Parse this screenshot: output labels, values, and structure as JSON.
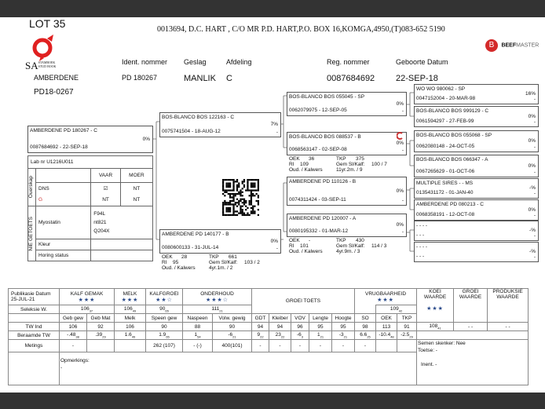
{
  "lot": "LOT 35",
  "address": "0013694, D.C. HART , C/O MR P.D. HART,P.O. BOX 16,KOMGA,4950,(T)083-652 5190",
  "logo_sa": {
    "big": "SA",
    "line1": "STAMBOEK",
    "line2": "STUD BOOK",
    "color": "#e02020"
  },
  "logo_beefmaster": {
    "text1": "BEEF",
    "text2": "MASTER",
    "color": "#d42a2a"
  },
  "header": {
    "labels": {
      "ident": "Ident. nommer",
      "geslag": "Geslag",
      "afdeling": "Afdeling",
      "reg": "Reg. nommer",
      "geboorte": "Geboorte Datum"
    },
    "values": {
      "name": "AMBERDENE",
      "ident": "PD  180267",
      "geslag": "MANLIK",
      "afdeling": "C",
      "reg": "0087684692",
      "geboorte": "22-SEP-18",
      "code": "PD18-0267"
    }
  },
  "pedigree": {
    "subject": {
      "name": "AMBERDENE PD  180267 - C",
      "reg": "0087684692 -  22-SEP-18",
      "pct": "0%",
      "dash": ""
    },
    "sire": {
      "name": "BOS-BLANCO BOS 122163 - C",
      "reg": "0075741504 - 18-AUG-12",
      "pct": "7%",
      "dash": "-"
    },
    "dam": {
      "name": "AMBERDENE PD  140177 - B",
      "reg": "0080600133 - 31-JUL-14",
      "pct": "0%",
      "dash": "-"
    },
    "ss": {
      "name": "BOS-BLANCO BOS 055045 - SP",
      "reg": "0062079975 - 12-SEP-05",
      "pct": "0%",
      "dash": "-"
    },
    "sd": {
      "name": "BOS-BLANCO BOS 088537 - B",
      "reg": "0068563147 - 02-SEP-08",
      "pct": "0%",
      "dash": "-"
    },
    "ds": {
      "name": "AMBERDENE PD  110126 - B",
      "reg": "0074311424 - 03-SEP-11",
      "pct": "0%",
      "dash": "-"
    },
    "dd": {
      "name": "AMBERDENE PD  120007 - A",
      "reg": "0080195332 - 01-MAR-12",
      "pct": "0%",
      "dash": "-"
    },
    "sss": {
      "name": "WO WO  980062 - SP",
      "reg": "0047152004 - 20-MAR-98",
      "pct": "16%",
      "dash": "-"
    },
    "ssd": {
      "name": "BOS-BLANCO BOS 999129 - C",
      "reg": "0061594297 - 27-FEB-99",
      "pct": "0%",
      "dash": "-"
    },
    "sds": {
      "name": "BOS-BLANCO BOS 055068 - SP",
      "reg": "0062080148 - 24-OCT-05",
      "pct": "0%",
      "dash": "-"
    },
    "sdd": {
      "name": "BOS-BLANCO BOS 066347 - A",
      "reg": "0067265629 - 01-OCT-06",
      "pct": "0%",
      "dash": "-"
    },
    "dss": {
      "name": "MULTIPLE SIRES - - MS",
      "reg": "0135431172 - 01-JAN-40",
      "pct": "-%",
      "dash": "-"
    },
    "dsd": {
      "name": "AMBERDENE PD  080213 - C",
      "reg": "0068358191 - 12-OCT-08",
      "pct": "0%",
      "dash": "-"
    },
    "dds": {
      "name": "- - - -",
      "reg": "- - -",
      "pct": "-%",
      "dash": "-"
    },
    "ddd": {
      "name": "- - - -",
      "reg": "- - -",
      "pct": "-%",
      "dash": "-"
    }
  },
  "dam_stats": {
    "oek_l": "OEK",
    "oek": "28",
    "tkp_l": "TKP",
    "tkp": "661",
    "ri_l": "RI",
    "ri": "95",
    "gem_l": "Gem Sl/Kalf:",
    "gem": "103 / 2",
    "oud_l": "Oud. / Kalwers",
    "oud": "4yr.1m. / 2"
  },
  "sd_stats": {
    "oek_l": "OEK",
    "oek": "36",
    "tkp_l": "TKP",
    "tkp": "375",
    "ri_l": "RI",
    "ri": "109",
    "gem_l": "Gem Sl/Kalf:",
    "gem": "100 / 7",
    "oud_l": "Oud. / Kalwers",
    "oud": "11yr.2m. / 9"
  },
  "dd_stats": {
    "oek_l": "OEK",
    "oek": "-",
    "tkp_l": "TKP",
    "tkp": "430",
    "ri_l": "RI",
    "ri": "101",
    "gem_l": "Gem Sl/Kalf:",
    "gem": "114 / 3",
    "oud_l": "Oud. / Kalwers",
    "oud": "4yr.9m. / 3"
  },
  "lab": {
    "labnr": "Lab nr  U1216U011",
    "vaar": "VAAR",
    "moer": "MOER",
    "ouerskap": "Ouerskap",
    "dns": "DNS",
    "dns_moer": "NT",
    "gr_vaar": "NT",
    "gr_moer": "NT",
    "nie_getoets": "NIE GETOETS",
    "myostatin": "Myostatin",
    "myo_vals": [
      "F94L",
      "nt821",
      "Q204X"
    ],
    "kleur": "Kleur",
    "horing": "Horing status"
  },
  "table": {
    "pub_label": "Publikasie Datum",
    "pub_date": "25-JUL-21",
    "groups": {
      "kalfgemak": "KALF GEMAK",
      "melk": "MELK",
      "kalfgroei": "KALFGROEI",
      "onderhoud": "ONDERHOUD",
      "groeitoets": "GROEI TOETS",
      "vrug": "VRUGBAARHEID",
      "koei": "KOEI WAARDE",
      "groei": "GROEI WAARDE",
      "produksie": "PRODUKSIE WAARDE"
    },
    "stars": {
      "kalfgemak": "★★★",
      "melk": "★★★",
      "kalfgroei": "★★☆",
      "onderhoud": "★★★☆",
      "vrug": "★★★",
      "koei": "★★★"
    },
    "seleksie_label": "Seleksie W.",
    "seleksie": [
      {
        "v": "106",
        "a": "37"
      },
      {
        "v": "106",
        "a": "49"
      },
      {
        "v": "90",
        "a": "65"
      },
      {
        "v": "111",
        "a": "21"
      },
      {
        "v": "109",
        "a": "42"
      }
    ],
    "cols": [
      "Geb gew",
      "Geb Mat",
      "Melk",
      "Speen gew",
      "Naspeen",
      "Volw. gewig",
      "GDT",
      "Kleiber",
      "VOV",
      "Lengte",
      "Hoogte",
      "SO",
      "OEK",
      "TKP"
    ],
    "tw_label": "TW Ind",
    "tw": [
      "106",
      "92",
      "106",
      "90",
      "88",
      "90",
      "94",
      "94",
      "96",
      "95",
      "95",
      "98",
      "113",
      "91"
    ],
    "koei_val": {
      "v": "108",
      "a": "41"
    },
    "groei_val": "- -",
    "prod_val": "- -",
    "ber_label": "Beraamde TW",
    "ber": [
      {
        "v": "-.48",
        "a": "38"
      },
      {
        "v": ".39",
        "a": "29"
      },
      {
        "v": "1.6",
        "a": "49"
      },
      {
        "v": "1.9",
        "a": "65"
      },
      {
        "v": "1",
        "a": "54"
      },
      {
        "v": "-6",
        "a": "21"
      },
      {
        "v": "9",
        "a": "22"
      },
      {
        "v": "23",
        "a": "22"
      },
      {
        "v": "-6",
        "a": "3"
      },
      {
        "v": "1",
        "a": "21"
      },
      {
        "v": "-3",
        "a": "21"
      },
      {
        "v": "6.6",
        "a": "25"
      },
      {
        "v": "-10.4",
        "a": "48"
      },
      {
        "v": "-2.5",
        "a": "29"
      }
    ],
    "met_label": "Metings",
    "met": [
      "-",
      "",
      "",
      "262 (107)",
      "-  (-)",
      "400(101)",
      "-",
      "-",
      "-",
      "-",
      "-",
      "-",
      "",
      ""
    ],
    "semen": "Semen skenker: Nee",
    "toetse": "Toetse: -",
    "inent": "Inent. -",
    "opm_label": "Opmerkings:",
    "opm": "-"
  }
}
